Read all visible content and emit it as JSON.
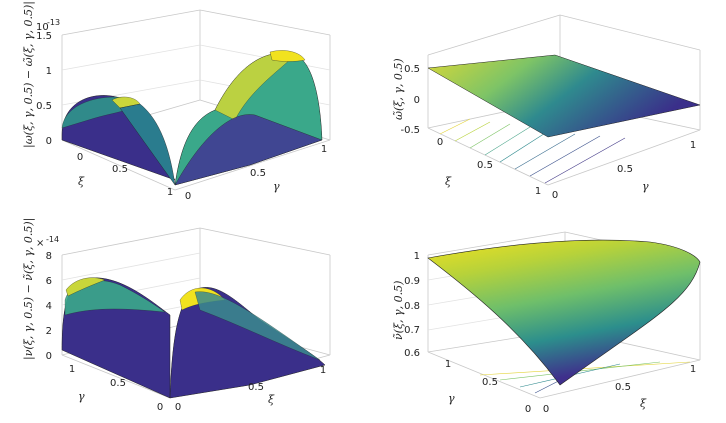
{
  "chart_data": [
    {
      "type": "surface",
      "xlabel": "ξ",
      "ylabel": "γ",
      "zlabel": "|ω(ξ, γ, 0.5) − ω̃(ξ, γ, 0.5)|",
      "zscale_label": "10",
      "zscale_exp": "-13",
      "xticks": [
        "0",
        "0.5",
        "1"
      ],
      "yticks": [
        "0",
        "0.5",
        "1"
      ],
      "zticks": [
        "0",
        "0.5",
        "1",
        "1.5"
      ],
      "zlim": [
        0,
        1.5
      ],
      "shape": "two half-domes along the outer edges with a saddle valley along the diagonal; peak ≈1.5 near (1,1)",
      "colormap": "viridis",
      "z_at_corners": {
        "xi0_gamma0": 0,
        "xi1_gamma0": 0,
        "xi0_gamma1": 0,
        "xi1_gamma1": 0
      }
    },
    {
      "type": "surface",
      "ylabel": "ξ",
      "xlabel": "γ",
      "zlabel": "ω̃(ξ, γ, 0.5)",
      "xticks": [
        "0",
        "0.5",
        "1"
      ],
      "yticks": [
        "0",
        "0.5",
        "1"
      ],
      "zticks": [
        "-0.5",
        "0",
        "0.5"
      ],
      "zlim": [
        -0.5,
        0.7
      ],
      "shape": "plane",
      "colormap": "viridis",
      "z_at_corners": {
        "xi0_gamma0": 0.6,
        "xi1_gamma0": 0.25,
        "xi0_gamma1": -0.25,
        "xi1_gamma1": -0.5
      }
    },
    {
      "type": "surface",
      "xlabel": "ξ",
      "ylabel": "γ",
      "zlabel": "|ν(ξ, γ, 0.5) − ν̃(ξ, γ, 0.5)|",
      "zscale_label": "×",
      "zscale_exp": "-14",
      "xticks": [
        "0",
        "0.5",
        "1"
      ],
      "yticks": [
        "0",
        "0.5",
        "1"
      ],
      "zticks": [
        "0",
        "2",
        "4",
        "6",
        "8"
      ],
      "zlim": [
        0,
        8
      ],
      "shape": "two half-domes along the outer edges with a valley along the diagonal; peak ≈6.5",
      "colormap": "viridis",
      "z_at_corners": {
        "xi0_gamma0": 0,
        "xi1_gamma0": 0,
        "xi0_gamma1": 0,
        "xi1_gamma1": 0
      }
    },
    {
      "type": "surface",
      "xlabel": "ξ",
      "ylabel": "γ",
      "zlabel": "ν̃(ξ, γ, 0.5)",
      "xticks": [
        "0",
        "0.5",
        "1"
      ],
      "yticks": [
        "0",
        "0.5",
        "1"
      ],
      "zticks": [
        "0.6",
        "0.7",
        "0.8",
        "0.9",
        "1"
      ],
      "zlim": [
        0.6,
        1
      ],
      "shape": "curved sheet",
      "colormap": "viridis",
      "z_at_corners": {
        "xi0_gamma0": 1.0,
        "xi1_gamma0": 0.96,
        "xi0_gamma1": 0.97,
        "xi1_gamma1": 0.62
      }
    }
  ],
  "colors": {
    "axis": "#999999",
    "grid": "#d4d4d4",
    "mesh": "#1a1a1a",
    "text": "#222222"
  }
}
